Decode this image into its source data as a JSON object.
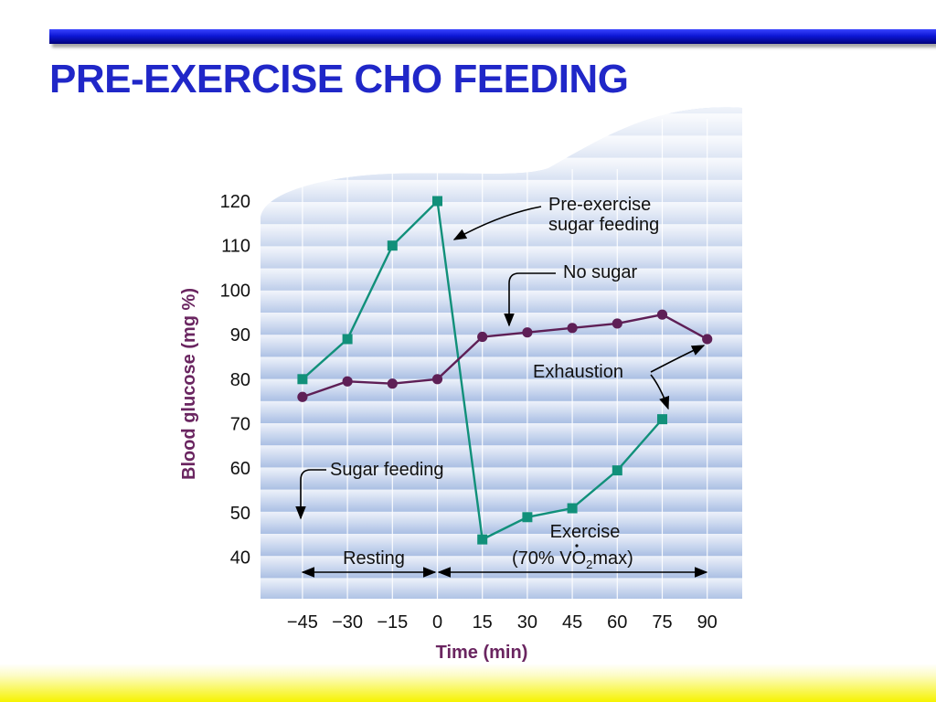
{
  "slide": {
    "title": "PRE-EXERCISE CHO FEEDING"
  },
  "colors": {
    "title": "#2027c8",
    "sugar_series": "#11907a",
    "no_sugar_series": "#5e1f56",
    "axis_text": "#6a2560",
    "band_light": "#e9eef8",
    "band_dark": "#b8c9e6"
  },
  "chart_data": {
    "type": "line",
    "xlabel": "Time (min)",
    "ylabel": "Blood glucose (mg %)",
    "xlim": [
      -45,
      90
    ],
    "ylim": [
      40,
      120
    ],
    "x_ticks": [
      -45,
      -30,
      -15,
      0,
      15,
      30,
      45,
      60,
      75,
      90
    ],
    "x_tick_labels": [
      "−45",
      "−30",
      "−15",
      "0",
      "15",
      "30",
      "45",
      "60",
      "75",
      "90"
    ],
    "y_ticks": [
      40,
      50,
      60,
      70,
      80,
      90,
      100,
      110,
      120
    ],
    "y_tick_labels": [
      "40",
      "50",
      "60",
      "70",
      "80",
      "90",
      "100",
      "110",
      "120"
    ],
    "series": [
      {
        "key": "sugar",
        "marker": "square",
        "color": "#11907a",
        "x": [
          -45,
          -30,
          -15,
          0,
          15,
          30,
          45,
          60,
          75
        ],
        "y": [
          80,
          89,
          110,
          120,
          44,
          49,
          51,
          59.5,
          71
        ]
      },
      {
        "key": "no_sugar",
        "marker": "circle",
        "color": "#5e1f56",
        "x": [
          -45,
          -30,
          -15,
          0,
          15,
          30,
          45,
          60,
          75,
          90
        ],
        "y": [
          76,
          79.5,
          79,
          80,
          89.5,
          90.5,
          91.5,
          92.5,
          94.5,
          89
        ]
      }
    ],
    "annotations": {
      "pre_exercise_line1": "Pre-exercise",
      "pre_exercise_line2": "sugar feeding",
      "no_sugar": "No sugar",
      "exhaustion": "Exhaustion",
      "sugar_feeding": "Sugar feeding",
      "resting": "Resting",
      "exercise_line1": "Exercise",
      "exercise_line2_prefix": "(70% ",
      "exercise_line2_v": "V",
      "exercise_line2_o": "O",
      "exercise_line2_sub": "2",
      "exercise_line2_suffix": "max)"
    }
  }
}
